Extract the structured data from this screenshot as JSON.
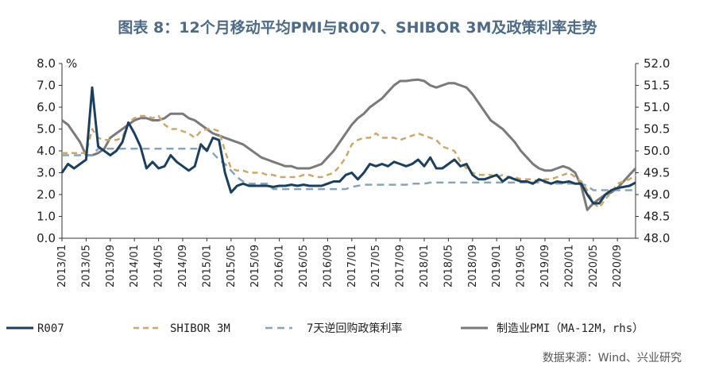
{
  "title": "图表 8：12个月移动平均PMI与R007、SHIBOR 3M及政策利率走势",
  "source": "数据来源：Wind、兴业研究",
  "chart_data": {
    "type": "line",
    "left_unit": "%",
    "left_ylim": [
      0,
      8
    ],
    "left_ticks": [
      "0.0",
      "1.0",
      "2.0",
      "3.0",
      "4.0",
      "5.0",
      "6.0",
      "7.0",
      "8.0"
    ],
    "right_ylim": [
      48,
      52
    ],
    "right_ticks": [
      "48.0",
      "48.5",
      "49.0",
      "49.5",
      "50.0",
      "50.5",
      "51.0",
      "51.5",
      "52.0"
    ],
    "x_tick_labels": [
      "2013/01",
      "2013/05",
      "2013/09",
      "2014/01",
      "2014/05",
      "2014/09",
      "2015/01",
      "2015/05",
      "2015/09",
      "2016/01",
      "2016/05",
      "2016/09",
      "2017/01",
      "2017/05",
      "2017/09",
      "2018/01",
      "2018/05",
      "2018/09",
      "2019/01",
      "2019/05",
      "2019/09",
      "2020/01",
      "2020/05",
      "2020/09"
    ],
    "colors": {
      "r007": "#1c3f5e",
      "shibor": "#c9a86e",
      "policy": "#88a4b6",
      "pmi": "#7a7a7a"
    },
    "series": [
      {
        "name": "R007",
        "axis": "left",
        "style": "solid",
        "values": [
          3.0,
          3.4,
          3.2,
          3.4,
          3.6,
          6.9,
          4.2,
          4.0,
          3.8,
          4.0,
          4.4,
          5.3,
          4.8,
          4.2,
          3.2,
          3.5,
          3.2,
          3.3,
          3.8,
          3.5,
          3.3,
          3.1,
          3.3,
          4.3,
          4.0,
          4.6,
          4.5,
          3.0,
          2.1,
          2.4,
          2.5,
          2.4,
          2.4,
          2.4,
          2.4,
          2.35,
          2.4,
          2.4,
          2.45,
          2.4,
          2.45,
          2.4,
          2.4,
          2.4,
          2.5,
          2.6,
          2.6,
          2.9,
          3.0,
          2.7,
          3.0,
          3.4,
          3.3,
          3.4,
          3.3,
          3.5,
          3.4,
          3.3,
          3.4,
          3.6,
          3.3,
          3.7,
          3.2,
          3.2,
          3.4,
          3.6,
          3.3,
          3.4,
          2.9,
          2.7,
          2.7,
          2.8,
          2.9,
          2.6,
          2.8,
          2.7,
          2.6,
          2.6,
          2.5,
          2.7,
          2.6,
          2.5,
          2.6,
          2.55,
          2.6,
          2.5,
          2.5,
          2.0,
          1.6,
          1.6,
          2.0,
          2.2,
          2.3,
          2.35,
          2.4,
          2.55
        ]
      },
      {
        "name": "SHIBOR 3M",
        "axis": "left",
        "style": "dashed",
        "values": [
          3.9,
          3.9,
          3.9,
          3.9,
          3.9,
          5.0,
          4.6,
          4.5,
          4.5,
          4.5,
          4.6,
          5.3,
          5.5,
          5.6,
          5.6,
          5.5,
          5.6,
          5.2,
          5.0,
          5.0,
          4.9,
          4.8,
          4.6,
          4.9,
          5.0,
          5.0,
          4.9,
          4.0,
          3.2,
          3.1,
          3.1,
          3.0,
          3.0,
          3.0,
          2.9,
          2.9,
          2.8,
          2.8,
          2.8,
          2.8,
          2.9,
          2.9,
          2.8,
          2.8,
          2.9,
          3.0,
          3.3,
          3.7,
          4.3,
          4.5,
          4.6,
          4.6,
          4.8,
          4.6,
          4.6,
          4.6,
          4.5,
          4.6,
          4.7,
          4.8,
          4.7,
          4.6,
          4.5,
          4.2,
          4.1,
          4.0,
          3.5,
          3.2,
          3.0,
          2.9,
          2.9,
          2.9,
          2.8,
          2.9,
          2.8,
          2.8,
          2.7,
          2.7,
          2.7,
          2.6,
          2.7,
          2.7,
          2.8,
          2.9,
          3.0,
          2.8,
          2.6,
          2.2,
          1.6,
          1.4,
          1.8,
          2.1,
          2.5,
          2.6,
          2.7,
          2.9
        ]
      },
      {
        "name": "7天逆回购政策利率",
        "axis": "left",
        "style": "dashed",
        "values": [
          3.8,
          3.8,
          3.8,
          3.8,
          3.8,
          3.8,
          4.1,
          4.1,
          4.1,
          4.1,
          4.1,
          4.1,
          4.1,
          4.1,
          4.1,
          4.1,
          4.1,
          4.1,
          4.1,
          4.1,
          4.1,
          4.1,
          4.1,
          4.1,
          4.1,
          3.9,
          3.6,
          3.4,
          3.1,
          2.8,
          2.6,
          2.5,
          2.5,
          2.5,
          2.5,
          2.25,
          2.25,
          2.25,
          2.25,
          2.25,
          2.25,
          2.25,
          2.25,
          2.25,
          2.25,
          2.25,
          2.25,
          2.25,
          2.35,
          2.4,
          2.45,
          2.45,
          2.45,
          2.45,
          2.45,
          2.45,
          2.45,
          2.45,
          2.5,
          2.5,
          2.5,
          2.55,
          2.55,
          2.55,
          2.55,
          2.55,
          2.55,
          2.55,
          2.55,
          2.55,
          2.55,
          2.55,
          2.55,
          2.55,
          2.55,
          2.55,
          2.55,
          2.55,
          2.55,
          2.55,
          2.55,
          2.5,
          2.5,
          2.5,
          2.5,
          2.5,
          2.5,
          2.4,
          2.2,
          2.2,
          2.2,
          2.2,
          2.2,
          2.2,
          2.2,
          2.2
        ]
      },
      {
        "name": "制造业PMI（MA-12M，rhs）",
        "axis": "right",
        "style": "solid",
        "values": [
          50.7,
          50.6,
          50.4,
          50.2,
          49.9,
          49.9,
          49.95,
          50.05,
          50.3,
          50.4,
          50.5,
          50.6,
          50.7,
          50.75,
          50.75,
          50.7,
          50.7,
          50.75,
          50.85,
          50.85,
          50.85,
          50.75,
          50.7,
          50.6,
          50.5,
          50.4,
          50.35,
          50.3,
          50.25,
          50.2,
          50.15,
          50.05,
          49.95,
          49.85,
          49.8,
          49.75,
          49.7,
          49.65,
          49.65,
          49.6,
          49.6,
          49.6,
          49.65,
          49.7,
          49.85,
          50.0,
          50.2,
          50.4,
          50.6,
          50.75,
          50.85,
          51.0,
          51.1,
          51.2,
          51.35,
          51.5,
          51.6,
          51.6,
          51.62,
          51.63,
          51.6,
          51.5,
          51.45,
          51.5,
          51.55,
          51.55,
          51.5,
          51.45,
          51.3,
          51.1,
          50.9,
          50.7,
          50.6,
          50.5,
          50.35,
          50.2,
          50.0,
          49.85,
          49.7,
          49.6,
          49.55,
          49.55,
          49.6,
          49.65,
          49.6,
          49.5,
          49.2,
          48.65,
          48.8,
          48.9,
          49.0,
          49.05,
          49.15,
          49.3,
          49.45,
          49.6
        ]
      }
    ],
    "legend_position": "bottom",
    "grid": false
  }
}
